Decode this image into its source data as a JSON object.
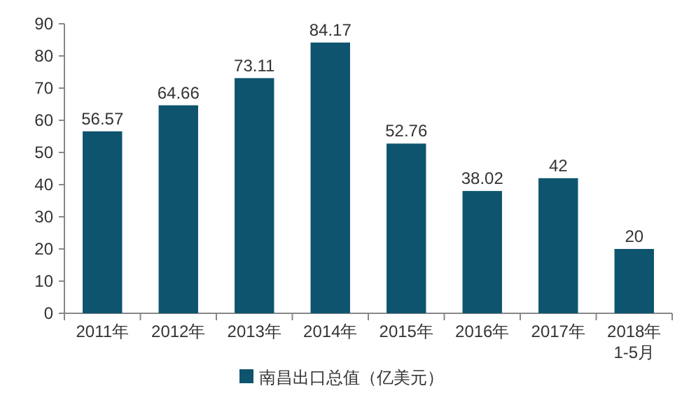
{
  "chart_data": {
    "type": "bar",
    "categories": [
      "2011年",
      "2012年",
      "2013年",
      "2014年",
      "2015年",
      "2016年",
      "2017年",
      "2018年\n1-5月"
    ],
    "series": [
      {
        "name": "南昌出口总值（亿美元）",
        "color": "#0f546e",
        "values": [
          56.57,
          64.66,
          73.11,
          84.17,
          52.76,
          38.02,
          42,
          20
        ]
      }
    ],
    "ylim": [
      0,
      90
    ],
    "yticks": [
      0,
      10,
      20,
      30,
      40,
      50,
      60,
      70,
      80,
      90
    ],
    "data_labels": true,
    "legend": "bottom",
    "grid": false
  }
}
